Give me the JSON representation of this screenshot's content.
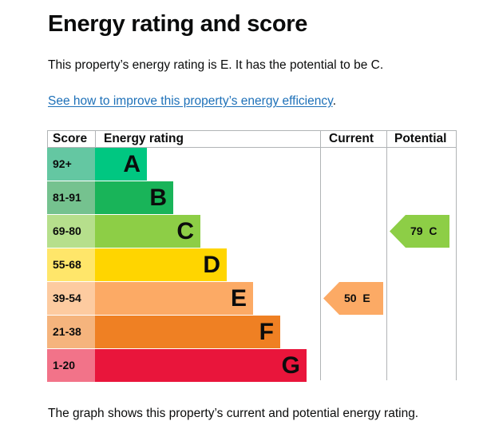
{
  "page": {
    "title": "Energy rating and score",
    "lead": "This property’s energy rating is E. It has the potential to be C.",
    "link_text": "See how to improve this property’s energy efficiency",
    "link_suffix": ".",
    "footer": "The graph shows this property’s current and potential energy rating."
  },
  "chart": {
    "headers": {
      "score": "Score",
      "rating": "Energy rating",
      "current": "Current",
      "potential": "Potential"
    },
    "bands": [
      {
        "score": "92+",
        "letter": "A",
        "color": "#00c781",
        "score_bg": "#64c7a2"
      },
      {
        "score": "81-91",
        "letter": "B",
        "color": "#19b459",
        "score_bg": "#75c28f"
      },
      {
        "score": "69-80",
        "letter": "C",
        "color": "#8dce46",
        "score_bg": "#b6df8c"
      },
      {
        "score": "55-68",
        "letter": "D",
        "color": "#ffd500",
        "score_bg": "#ffe66a"
      },
      {
        "score": "39-54",
        "letter": "E",
        "color": "#fcaa65",
        "score_bg": "#fdcba0"
      },
      {
        "score": "21-38",
        "letter": "F",
        "color": "#ef8023",
        "score_bg": "#f5b47d"
      },
      {
        "score": "1-20",
        "letter": "G",
        "color": "#e9153b",
        "score_bg": "#f27389"
      }
    ],
    "current": {
      "score": 50,
      "band": "E",
      "label": "50  E",
      "color": "#fcaa65"
    },
    "potential": {
      "score": 79,
      "band": "C",
      "label": "79  C",
      "color": "#8dce46"
    }
  }
}
